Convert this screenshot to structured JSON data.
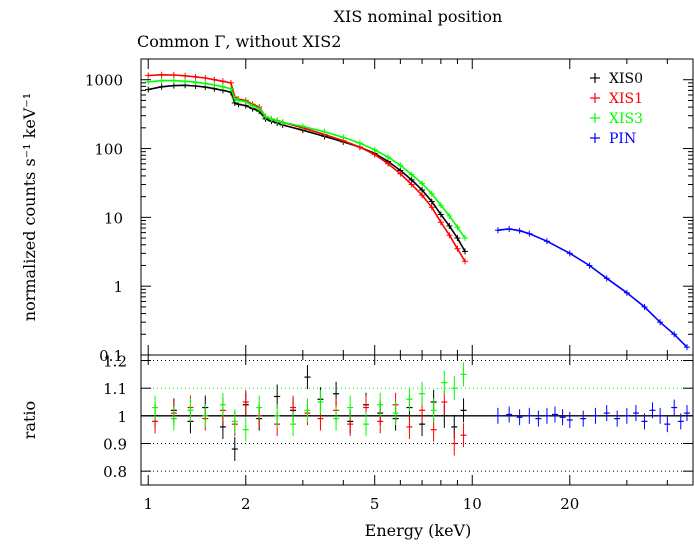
{
  "chart_data": [
    {
      "panel": "top",
      "type": "line",
      "title": "XIS nominal position",
      "subtitle": "Common Γ, without XIS2",
      "ylabel": "normalized counts s⁻¹ keV⁻¹",
      "xscale": "log",
      "yscale": "log",
      "xlim": [
        0.95,
        48
      ],
      "ylim": [
        0.1,
        2000
      ],
      "y_ticks": [
        "0.1",
        "1",
        "10",
        "100",
        "1000"
      ],
      "legend": {
        "placement": "top-right",
        "entries": [
          "XIS0",
          "XIS1",
          "XIS3",
          "PIN"
        ]
      },
      "series": [
        {
          "name": "XIS0",
          "color": "#000000",
          "x": [
            1.0,
            1.1,
            1.2,
            1.3,
            1.4,
            1.5,
            1.6,
            1.7,
            1.8,
            1.85,
            1.9,
            2.0,
            2.1,
            2.2,
            2.3,
            2.4,
            2.5,
            2.6,
            3.0,
            3.5,
            4.0,
            4.5,
            5.0,
            5.5,
            6.0,
            6.5,
            7.0,
            7.5,
            8.0,
            8.5,
            9.0,
            9.5
          ],
          "y": [
            720,
            790,
            820,
            830,
            810,
            780,
            740,
            700,
            660,
            460,
            440,
            420,
            380,
            350,
            270,
            250,
            235,
            220,
            185,
            150,
            125,
            105,
            85,
            65,
            48,
            35,
            25,
            17,
            11,
            7.5,
            5,
            3.2
          ]
        },
        {
          "name": "XIS1",
          "color": "#ff0000",
          "x": [
            1.0,
            1.1,
            1.2,
            1.3,
            1.4,
            1.5,
            1.6,
            1.7,
            1.8,
            1.85,
            1.9,
            2.0,
            2.1,
            2.2,
            2.3,
            2.4,
            2.5,
            2.6,
            3.0,
            3.5,
            4.0,
            4.5,
            5.0,
            5.5,
            6.0,
            6.5,
            7.0,
            7.5,
            8.0,
            8.5,
            9.0,
            9.5
          ],
          "y": [
            1150,
            1180,
            1170,
            1140,
            1100,
            1060,
            1000,
            950,
            900,
            560,
            520,
            500,
            440,
            400,
            290,
            270,
            255,
            240,
            200,
            160,
            130,
            105,
            82,
            60,
            43,
            30,
            21,
            14,
            8.5,
            5.5,
            3.5,
            2.3
          ]
        },
        {
          "name": "XIS3",
          "color": "#00ff00",
          "x": [
            1.0,
            1.1,
            1.2,
            1.3,
            1.4,
            1.5,
            1.6,
            1.7,
            1.8,
            1.85,
            1.9,
            2.0,
            2.1,
            2.2,
            2.3,
            2.4,
            2.5,
            2.6,
            3.0,
            3.5,
            4.0,
            4.5,
            5.0,
            5.5,
            6.0,
            6.5,
            7.0,
            7.5,
            8.0,
            8.5,
            9.0,
            9.5
          ],
          "y": [
            930,
            970,
            970,
            950,
            920,
            880,
            840,
            790,
            740,
            530,
            500,
            480,
            420,
            380,
            290,
            270,
            255,
            240,
            210,
            175,
            145,
            120,
            96,
            75,
            57,
            42,
            31,
            22,
            15,
            10.5,
            7.2,
            5
          ]
        },
        {
          "name": "PIN",
          "color": "#0000ff",
          "x": [
            12,
            13,
            14,
            15,
            17,
            20,
            23,
            26,
            30,
            34,
            38,
            42,
            46
          ],
          "y": [
            6.5,
            6.8,
            6.4,
            5.8,
            4.5,
            3.0,
            2.0,
            1.3,
            0.8,
            0.5,
            0.3,
            0.2,
            0.13
          ]
        }
      ]
    },
    {
      "panel": "bottom",
      "type": "scatter",
      "xlabel": "Energy (keV)",
      "ylabel": "ratio",
      "xscale": "log",
      "xlim": [
        0.95,
        48
      ],
      "ylim": [
        0.75,
        1.22
      ],
      "x_ticks": [
        "1",
        "2",
        "5",
        "10",
        "20"
      ],
      "y_ticks": [
        "0.8",
        "0.9",
        "1",
        "1.1",
        "1.2"
      ],
      "reference_lines": [
        {
          "y": 1.0,
          "style": "solid",
          "color": "#000000"
        },
        {
          "y": 1.2,
          "style": "dotted",
          "color": "#000000"
        },
        {
          "y": 1.1,
          "style": "dotted",
          "color": "#00ff00"
        },
        {
          "y": 0.9,
          "style": "dotted",
          "color": "#000000"
        },
        {
          "y": 0.8,
          "style": "dotted",
          "color": "#000000"
        }
      ],
      "series": [
        {
          "name": "XIS0",
          "color": "#000000",
          "x": [
            1.05,
            1.2,
            1.35,
            1.5,
            1.7,
            1.85,
            2.0,
            2.2,
            2.5,
            2.8,
            3.1,
            3.4,
            3.8,
            4.2,
            4.7,
            5.2,
            5.8,
            6.4,
            7.0,
            7.6,
            8.2,
            8.8,
            9.4
          ],
          "y": [
            1.0,
            1.02,
            0.98,
            1.03,
            0.96,
            0.88,
            1.04,
            0.99,
            1.07,
            1.02,
            1.14,
            1.06,
            1.08,
            0.98,
            1.04,
            1.01,
            0.99,
            1.03,
            0.97,
            1.05,
            1.0,
            0.96,
            1.02
          ]
        },
        {
          "name": "XIS1",
          "color": "#ff0000",
          "x": [
            1.05,
            1.2,
            1.35,
            1.5,
            1.7,
            1.85,
            2.0,
            2.2,
            2.5,
            2.8,
            3.1,
            3.4,
            3.8,
            4.2,
            4.7,
            5.2,
            5.8,
            6.4,
            7.0,
            7.6,
            8.2,
            8.8,
            9.4
          ],
          "y": [
            0.98,
            1.01,
            1.03,
            0.99,
            1.02,
            0.97,
            1.05,
            1.0,
            0.97,
            1.03,
            1.01,
            0.99,
            1.02,
            0.97,
            1.03,
            0.98,
            1.04,
            0.96,
            1.02,
            0.95,
            1.05,
            0.9,
            0.93
          ]
        },
        {
          "name": "XIS3",
          "color": "#00ff00",
          "x": [
            1.05,
            1.2,
            1.35,
            1.5,
            1.7,
            1.85,
            2.0,
            2.2,
            2.5,
            2.8,
            3.1,
            3.4,
            3.8,
            4.2,
            4.7,
            5.2,
            5.8,
            6.4,
            7.0,
            7.6,
            8.2,
            8.8,
            9.4
          ],
          "y": [
            1.03,
            0.99,
            1.02,
            1.0,
            1.04,
            0.98,
            0.95,
            1.03,
            1.0,
            0.97,
            1.02,
            1.05,
            0.99,
            1.03,
            0.97,
            1.04,
            1.01,
            1.06,
            1.08,
            1.02,
            1.12,
            1.1,
            1.15
          ]
        },
        {
          "name": "PIN",
          "color": "#0000ff",
          "x": [
            12,
            13,
            14,
            15,
            16,
            17,
            18,
            19,
            20,
            22,
            24,
            26,
            28,
            30,
            32,
            34,
            36,
            38,
            40,
            42,
            44,
            46
          ],
          "y": [
            1.0,
            1.005,
            0.995,
            1.0,
            0.99,
            1.0,
            1.005,
            0.995,
            0.985,
            0.99,
            1.0,
            1.01,
            0.99,
            1.0,
            1.01,
            0.98,
            1.02,
            1.0,
            0.97,
            1.03,
            0.98,
            1.01
          ]
        }
      ]
    }
  ]
}
